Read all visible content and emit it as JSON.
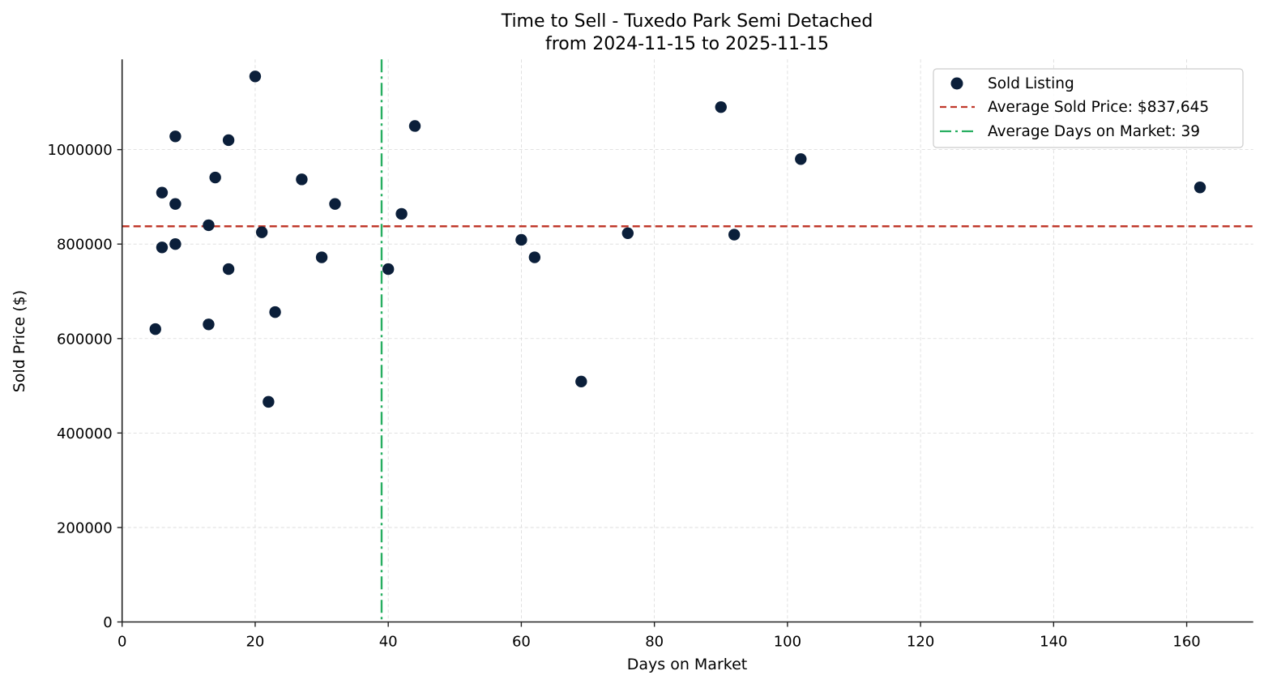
{
  "chart_data": {
    "type": "scatter",
    "title": "Time to Sell - Tuxedo Park Semi Detached",
    "subtitle": "from 2024-11-15 to 2025-11-15",
    "xlabel": "Days on Market",
    "ylabel": "Sold Price ($)",
    "xlim": [
      0,
      170
    ],
    "ylim": [
      0,
      1191000
    ],
    "xticks": [
      0,
      20,
      40,
      60,
      80,
      100,
      120,
      140,
      160
    ],
    "yticks": [
      0,
      200000,
      400000,
      600000,
      800000,
      1000000
    ],
    "xtick_labels": [
      "0",
      "20",
      "40",
      "60",
      "80",
      "100",
      "120",
      "140",
      "160"
    ],
    "ytick_labels": [
      "0",
      "200000",
      "400000",
      "600000",
      "800000",
      "1000000"
    ],
    "grid": true,
    "legend_position": "upper right",
    "series": [
      {
        "name": "Sold Listing",
        "kind": "scatter",
        "color": "#0b1f3a",
        "points": [
          {
            "x": 8,
            "y": 1028000
          },
          {
            "x": 16,
            "y": 1020000
          },
          {
            "x": 14,
            "y": 941000
          },
          {
            "x": 6,
            "y": 909000
          },
          {
            "x": 8,
            "y": 885000
          },
          {
            "x": 13,
            "y": 840000
          },
          {
            "x": 6,
            "y": 793000
          },
          {
            "x": 8,
            "y": 800000
          },
          {
            "x": 16,
            "y": 747000
          },
          {
            "x": 5,
            "y": 620000
          },
          {
            "x": 13,
            "y": 630000
          },
          {
            "x": 23,
            "y": 656000
          },
          {
            "x": 22,
            "y": 466000
          },
          {
            "x": 20,
            "y": 1155000
          },
          {
            "x": 27,
            "y": 937000
          },
          {
            "x": 32,
            "y": 885000
          },
          {
            "x": 42,
            "y": 864000
          },
          {
            "x": 21,
            "y": 825000
          },
          {
            "x": 30,
            "y": 772000
          },
          {
            "x": 40,
            "y": 747000
          },
          {
            "x": 44,
            "y": 1050000
          },
          {
            "x": 60,
            "y": 809000
          },
          {
            "x": 62,
            "y": 772000
          },
          {
            "x": 76,
            "y": 823000
          },
          {
            "x": 69,
            "y": 509000
          },
          {
            "x": 90,
            "y": 1090000
          },
          {
            "x": 102,
            "y": 980000
          },
          {
            "x": 92,
            "y": 820000
          },
          {
            "x": 162,
            "y": 920000
          }
        ]
      },
      {
        "name": "Average Sold Price: $837,645",
        "kind": "hline",
        "y": 837645,
        "color": "#c0392b",
        "style": "dashed"
      },
      {
        "name": "Average Days on Market: 39",
        "kind": "vline",
        "x": 39,
        "color": "#27ae60",
        "style": "dashdot"
      }
    ]
  },
  "legend": {
    "items": [
      {
        "label": "Sold Listing",
        "marker": "dot",
        "color": "#0b1f3a"
      },
      {
        "label": "Average Sold Price: $837,645",
        "marker": "dashed-line",
        "color": "#c0392b"
      },
      {
        "label": "Average Days on Market: 39",
        "marker": "dashdot-line",
        "color": "#27ae60"
      }
    ]
  },
  "colors": {
    "axis": "#222222",
    "grid": "#d9d9d9",
    "text": "#000000"
  }
}
